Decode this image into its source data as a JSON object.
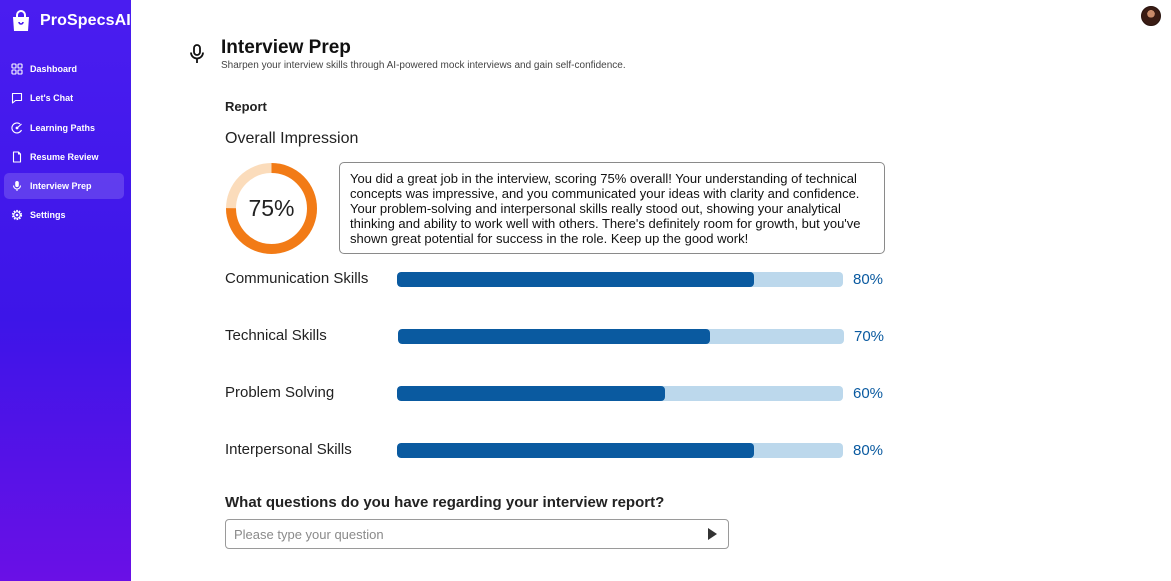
{
  "brand": {
    "name": "ProSpecsAI"
  },
  "sidebar": {
    "items": [
      {
        "label": "Dashboard",
        "icon": "dashboard-grid-icon"
      },
      {
        "label": "Let's Chat",
        "icon": "chat-bubble-icon"
      },
      {
        "label": "Learning Paths",
        "icon": "learning-path-icon"
      },
      {
        "label": "Resume Review",
        "icon": "document-icon"
      },
      {
        "label": "Interview Prep",
        "icon": "microphone-icon",
        "active": true
      },
      {
        "label": "Settings",
        "icon": "gear-icon"
      }
    ]
  },
  "header": {
    "title": "Interview Prep",
    "subtitle": "Sharpen your interview skills through AI-powered mock interviews and gain self-confidence."
  },
  "report": {
    "section_label": "Report",
    "overall_label": "Overall Impression",
    "overall_score": 75,
    "overall_text": "75%",
    "summary": "You did a great job in the interview, scoring 75% overall! Your understanding of technical concepts was impressive, and you communicated your ideas with clarity and confidence. Your problem-solving and interpersonal skills really stood out, showing your analytical thinking and ability to work well with others. There's definitely room for growth, but you've shown great potential for success in the role. Keep up the good work!",
    "skills": [
      {
        "name": "Communication Skills",
        "value": 80,
        "text": "80%"
      },
      {
        "name": "Technical Skills",
        "value": 70,
        "text": "70%"
      },
      {
        "name": "Problem Solving",
        "value": 60,
        "text": "60%"
      },
      {
        "name": "Interpersonal Skills",
        "value": 80,
        "text": "80%"
      }
    ]
  },
  "question": {
    "prompt": "What questions do you have regarding your interview report?",
    "placeholder": "Please type your question",
    "value": ""
  },
  "colors": {
    "sidebar_top": "#4a1df0",
    "sidebar_bottom": "#6a10e6",
    "donut_fill": "#f27b16",
    "donut_track": "#fbdcbb",
    "bar_fill": "#0a5aa0",
    "bar_track": "#bcd8ec"
  }
}
